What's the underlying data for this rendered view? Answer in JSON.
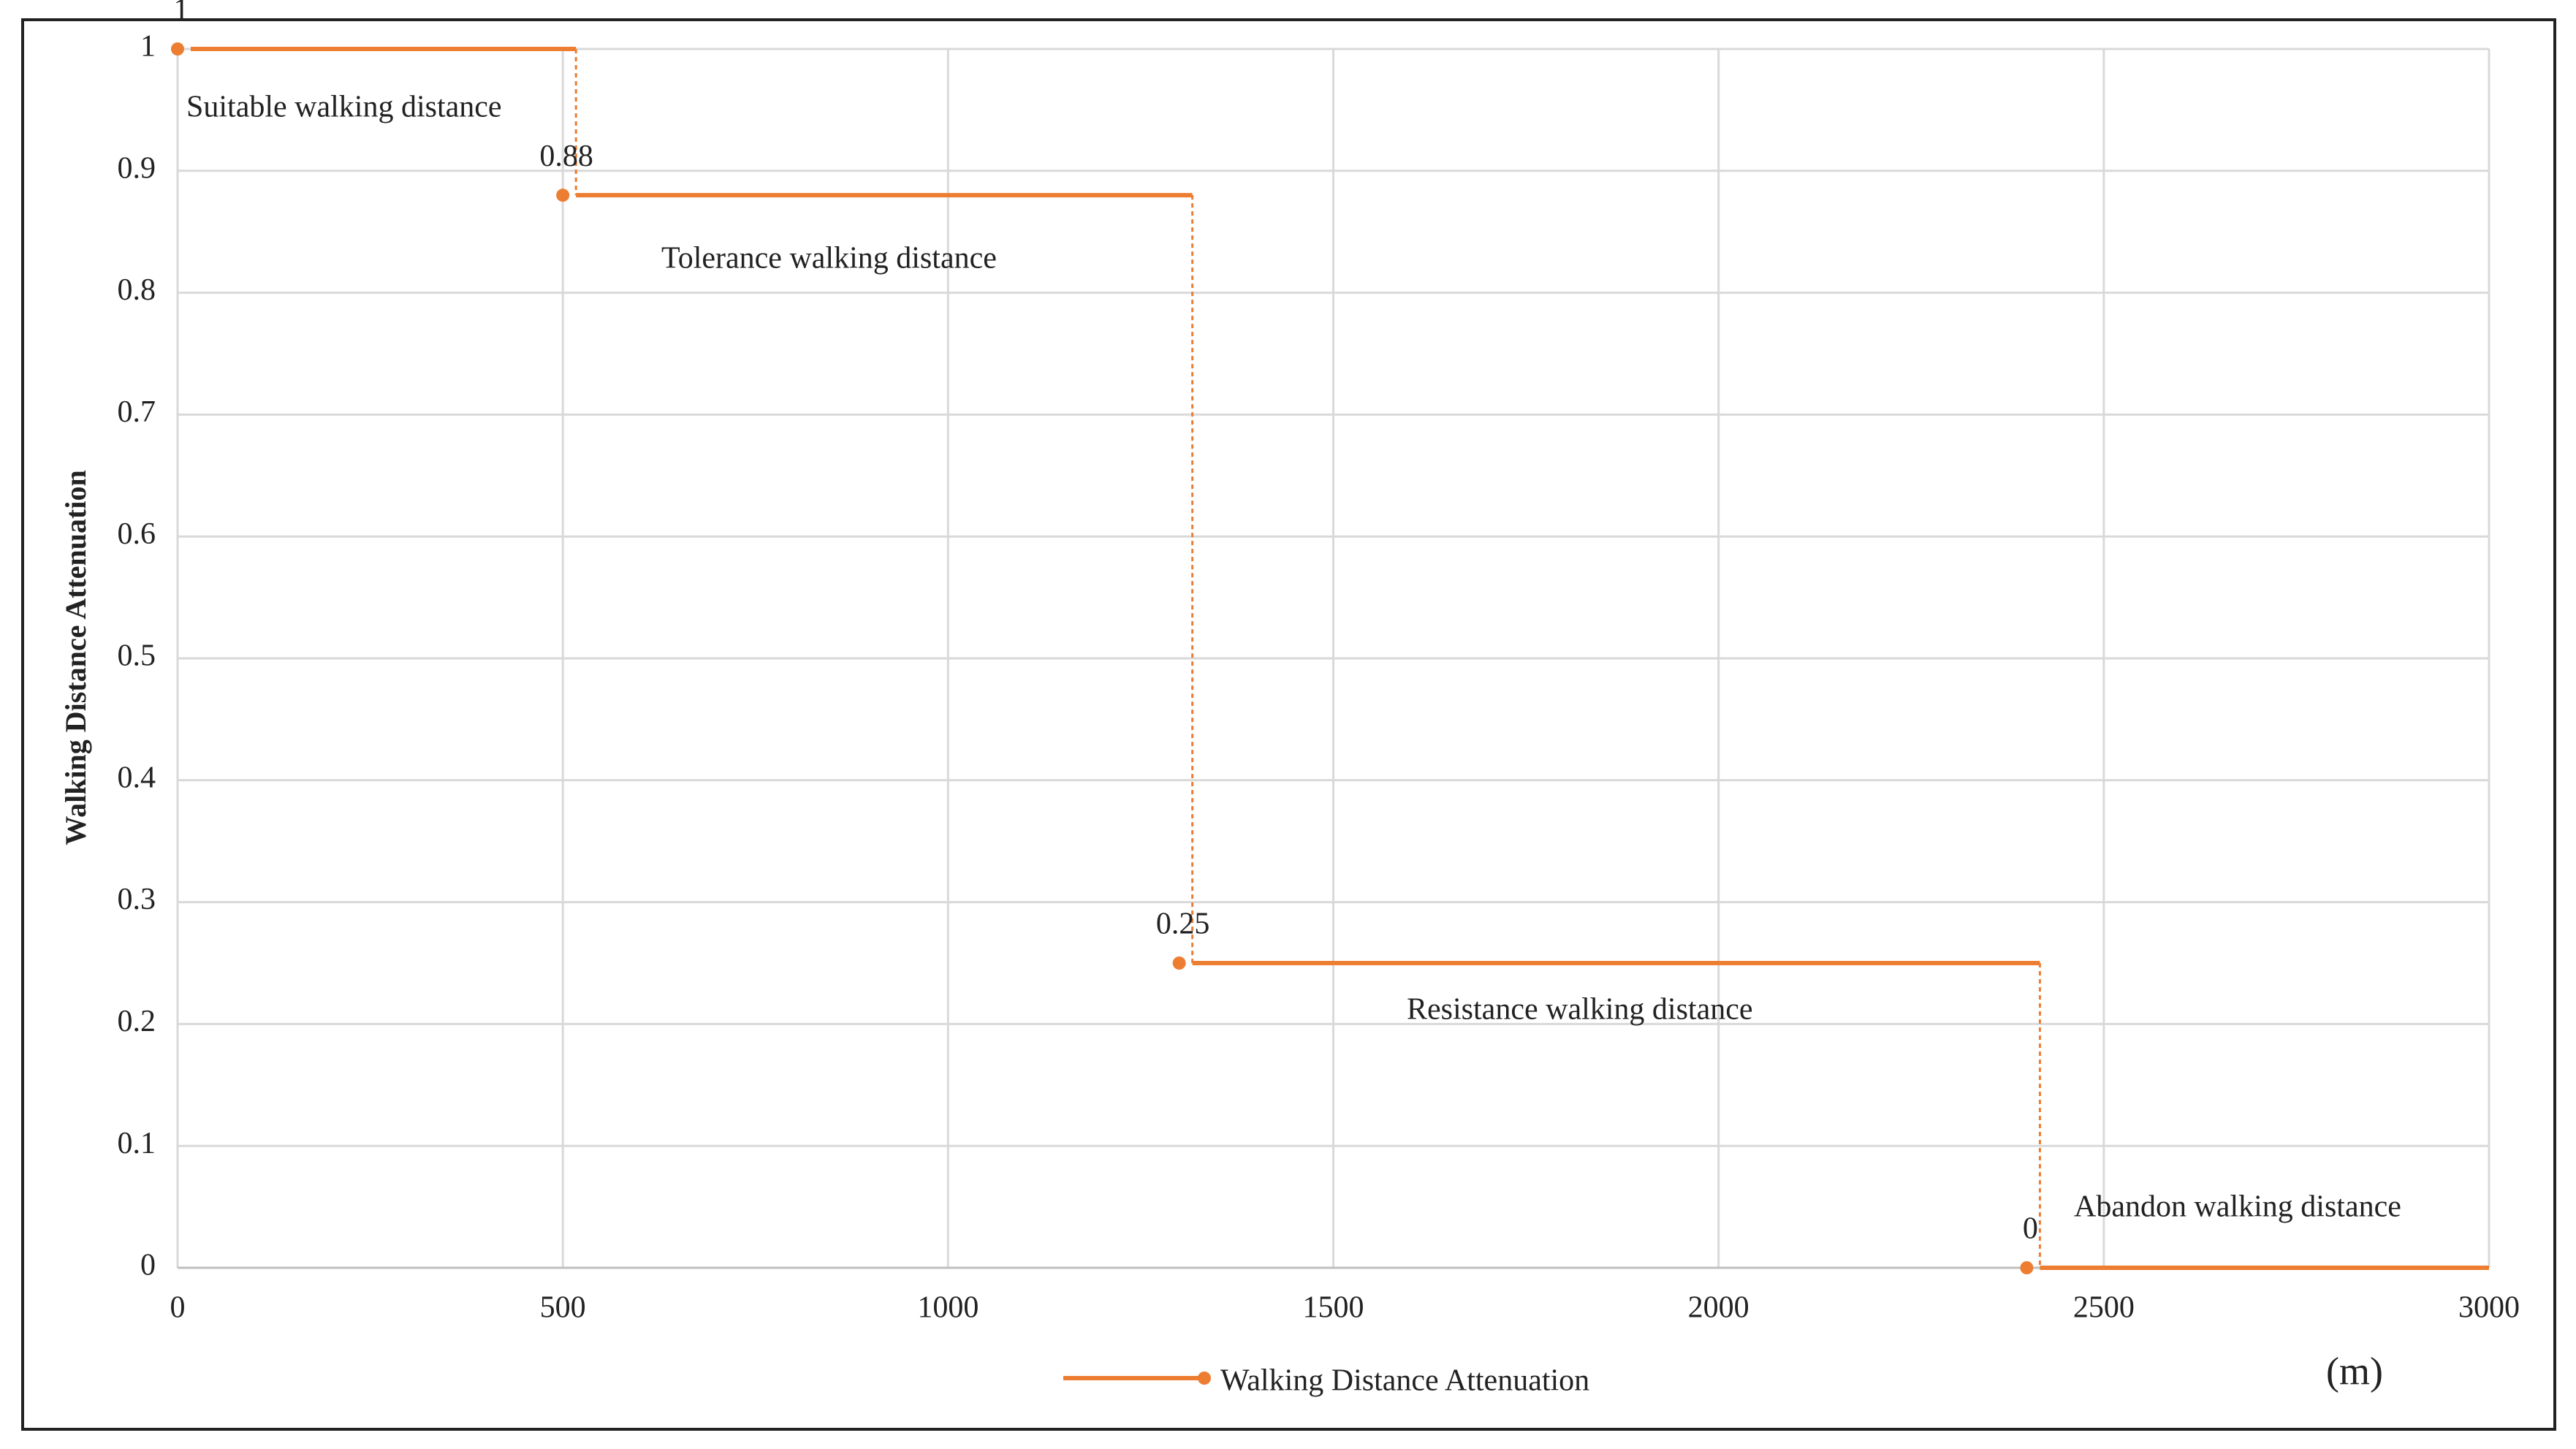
{
  "chart_data": {
    "type": "step",
    "y_label": "Walking Distance Attenuation",
    "x_label": "(m)",
    "x": [
      0,
      500,
      1300,
      2400
    ],
    "series": [
      {
        "name": "Walking Distance Attenuation",
        "color": "#ed7d31",
        "values": [
          1,
          0.88,
          0.25,
          0
        ]
      }
    ],
    "annotations": [
      "Suitable walking distance",
      "Tolerance walking distance",
      "Resistance walking distance",
      "Abandon walking distance"
    ],
    "xlim": [
      0,
      3000
    ],
    "xticks": [
      0,
      500,
      1000,
      1500,
      2000,
      2500,
      3000
    ],
    "ylim": [
      0,
      1
    ],
    "yticks": [
      0,
      0.1,
      0.2,
      0.3,
      0.4,
      0.5,
      0.6,
      0.7,
      0.8,
      0.9,
      1
    ],
    "grid": true,
    "legend": "bottom"
  }
}
